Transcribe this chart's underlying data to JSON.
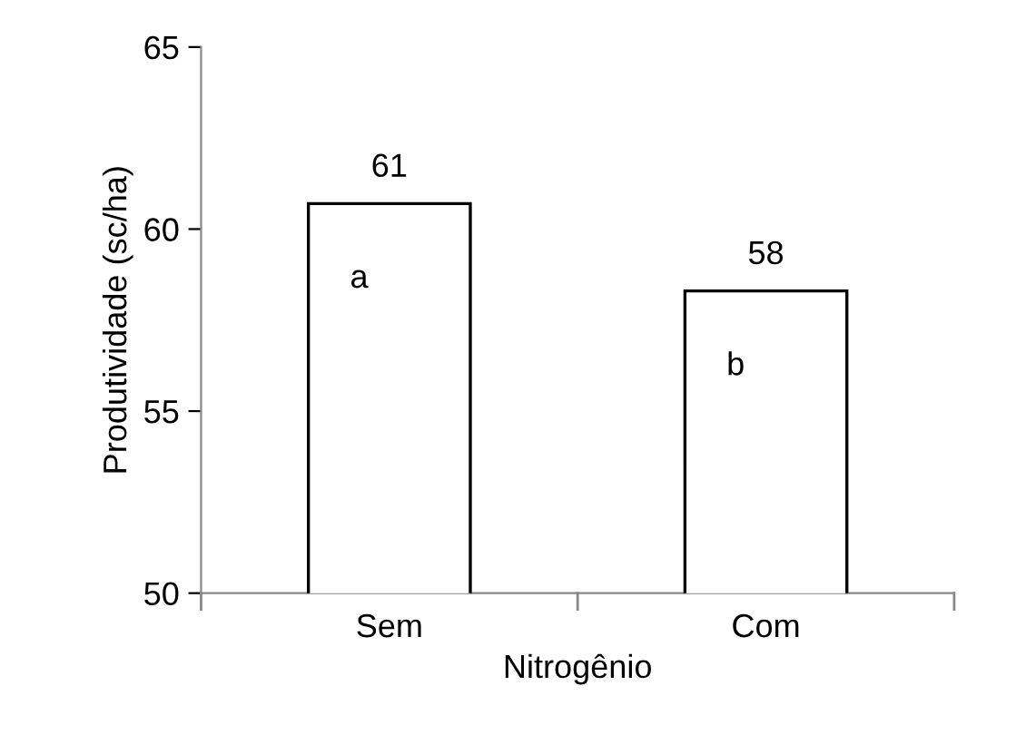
{
  "chart_data": {
    "type": "bar",
    "xlabel": "Nitrogênio",
    "ylabel": "Produtividade (sc/ha)",
    "categories": [
      "Sem",
      "Com"
    ],
    "values": [
      60.7,
      58.3
    ],
    "value_labels": [
      "61",
      "58"
    ],
    "color": "#ffffff",
    "ylim": [
      50,
      65
    ],
    "yticks": [
      50,
      55,
      60,
      65
    ],
    "grid": false,
    "legend": false,
    "annotations": [
      "a",
      "b"
    ]
  }
}
